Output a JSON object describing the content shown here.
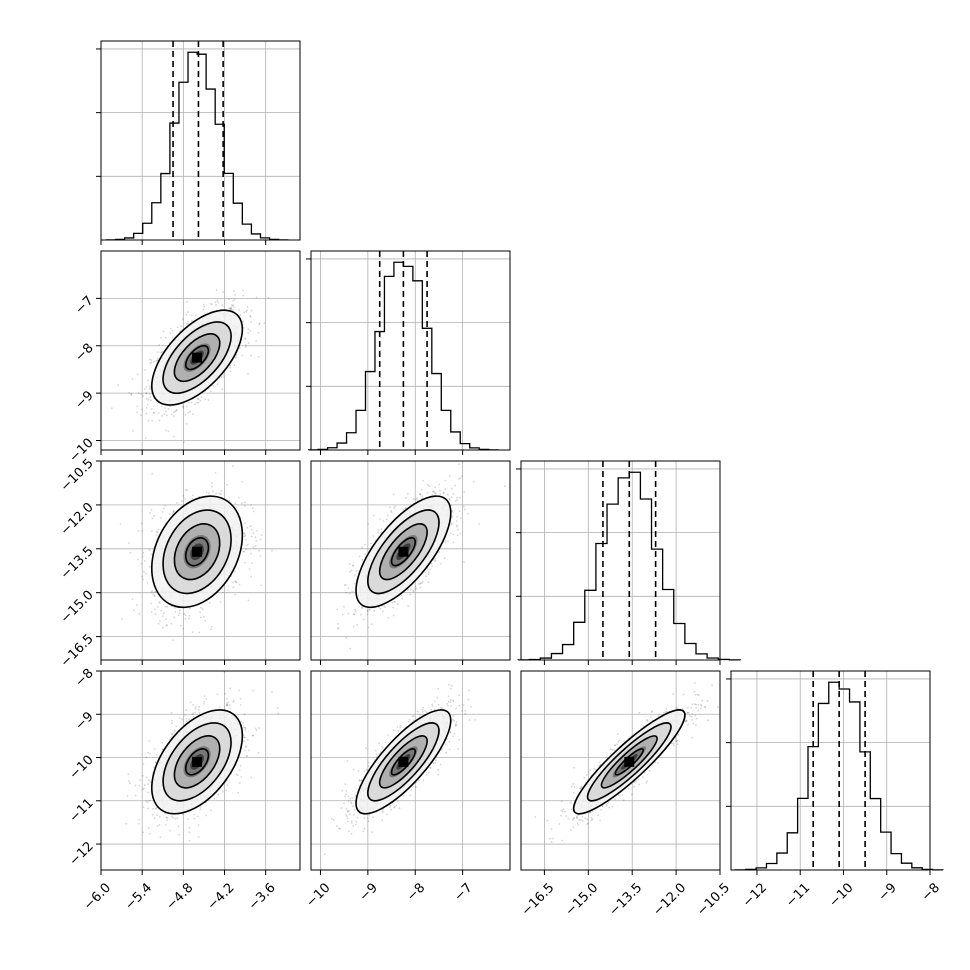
{
  "chart_data": {
    "type": "corner",
    "parameters": [
      {
        "mean": -4.6,
        "sd": 0.33,
        "range": [
          -6.0,
          -3.1
        ],
        "q16": -4.95,
        "q50": -4.58,
        "q84": -4.22,
        "ticks": [
          -6.0,
          -5.4,
          -4.8,
          -4.2,
          -3.6
        ],
        "tick_labels": [
          "−6.0",
          "−5.4",
          "−4.8",
          "−4.2",
          "−3.6"
        ]
      },
      {
        "mean": -8.25,
        "sd": 0.5,
        "range": [
          -10.2,
          -6.0
        ],
        "q16": -8.75,
        "q50": -8.25,
        "q84": -7.75,
        "ticks": [
          -10,
          -9,
          -8,
          -7
        ],
        "tick_labels": [
          "−10",
          "−9",
          "−8",
          "−7"
        ]
      },
      {
        "mean": -13.6,
        "sd": 0.95,
        "range": [
          -17.3,
          -10.5
        ],
        "q16": -14.5,
        "q50": -13.6,
        "q84": -12.7,
        "ticks": [
          -16.5,
          -15.0,
          -13.5,
          -12.0,
          -10.5
        ],
        "tick_labels": [
          "−16.5",
          "−15.0",
          "−13.5",
          "−12.0",
          "−10.5"
        ]
      },
      {
        "mean": -10.1,
        "sd": 0.6,
        "range": [
          -12.6,
          -8.0
        ],
        "q16": -10.7,
        "q50": -10.1,
        "q84": -9.5,
        "ticks": [
          -12,
          -11,
          -10,
          -9,
          -8
        ],
        "tick_labels": [
          "−12",
          "−11",
          "−10",
          "−9",
          "−8"
        ]
      }
    ],
    "correlations": [
      [
        1,
        0.6,
        0.3,
        0.5
      ],
      [
        0.6,
        1,
        0.7,
        0.8
      ],
      [
        0.3,
        0.7,
        1,
        0.9
      ],
      [
        0.5,
        0.8,
        0.9,
        1
      ]
    ],
    "contour_levels_sigma": [
      0.5,
      1.0,
      1.5,
      2.0
    ],
    "grid": true,
    "colors": {
      "ink": "#000000",
      "samples": "#444444",
      "grid": "#b0b0b0"
    }
  }
}
